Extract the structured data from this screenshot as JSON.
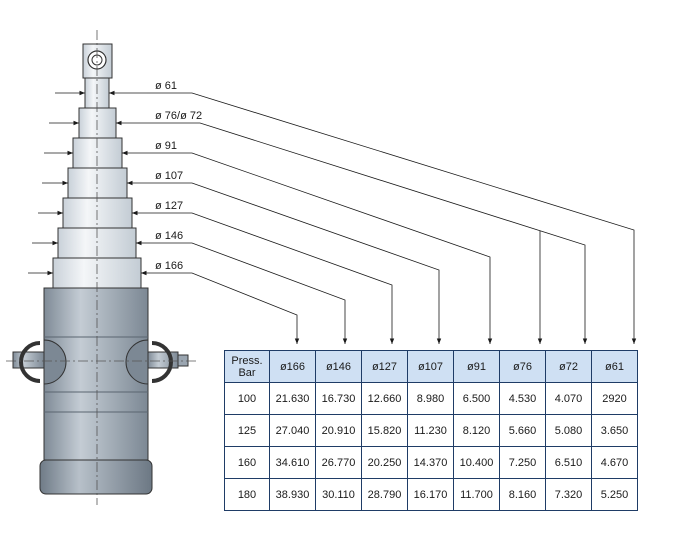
{
  "diameter_labels": [
    "ø 61",
    "ø 76/ø 72",
    "ø 91",
    "ø 107",
    "ø 127",
    "ø 146",
    "ø 166"
  ],
  "table": {
    "header_press": "Press.",
    "header_bar": "Bar",
    "columns": [
      "ø166",
      "ø146",
      "ø127",
      "ø107",
      "ø91",
      "ø76",
      "ø72",
      "ø61"
    ],
    "rows": [
      {
        "pressure": "100",
        "values": [
          "21.630",
          "16.730",
          "12.660",
          "8.980",
          "6.500",
          "4.530",
          "4.070",
          "2920"
        ]
      },
      {
        "pressure": "125",
        "values": [
          "27.040",
          "20.910",
          "15.820",
          "11.230",
          "8.120",
          "5.660",
          "5.080",
          "3.650"
        ]
      },
      {
        "pressure": "160",
        "values": [
          "34.610",
          "26.770",
          "20.250",
          "14.370",
          "10.400",
          "7.250",
          "6.510",
          "4.670"
        ]
      },
      {
        "pressure": "180",
        "values": [
          "38.930",
          "30.110",
          "28.790",
          "16.170",
          "11.700",
          "8.160",
          "7.320",
          "5.250"
        ]
      }
    ]
  },
  "colors": {
    "stage_fill": "#e6ebf0",
    "cylinder_fill": "#a9b4bf",
    "header_fill": "#cfe0f3",
    "line": "#1a1a1a",
    "table_border": "#1f3c66"
  }
}
